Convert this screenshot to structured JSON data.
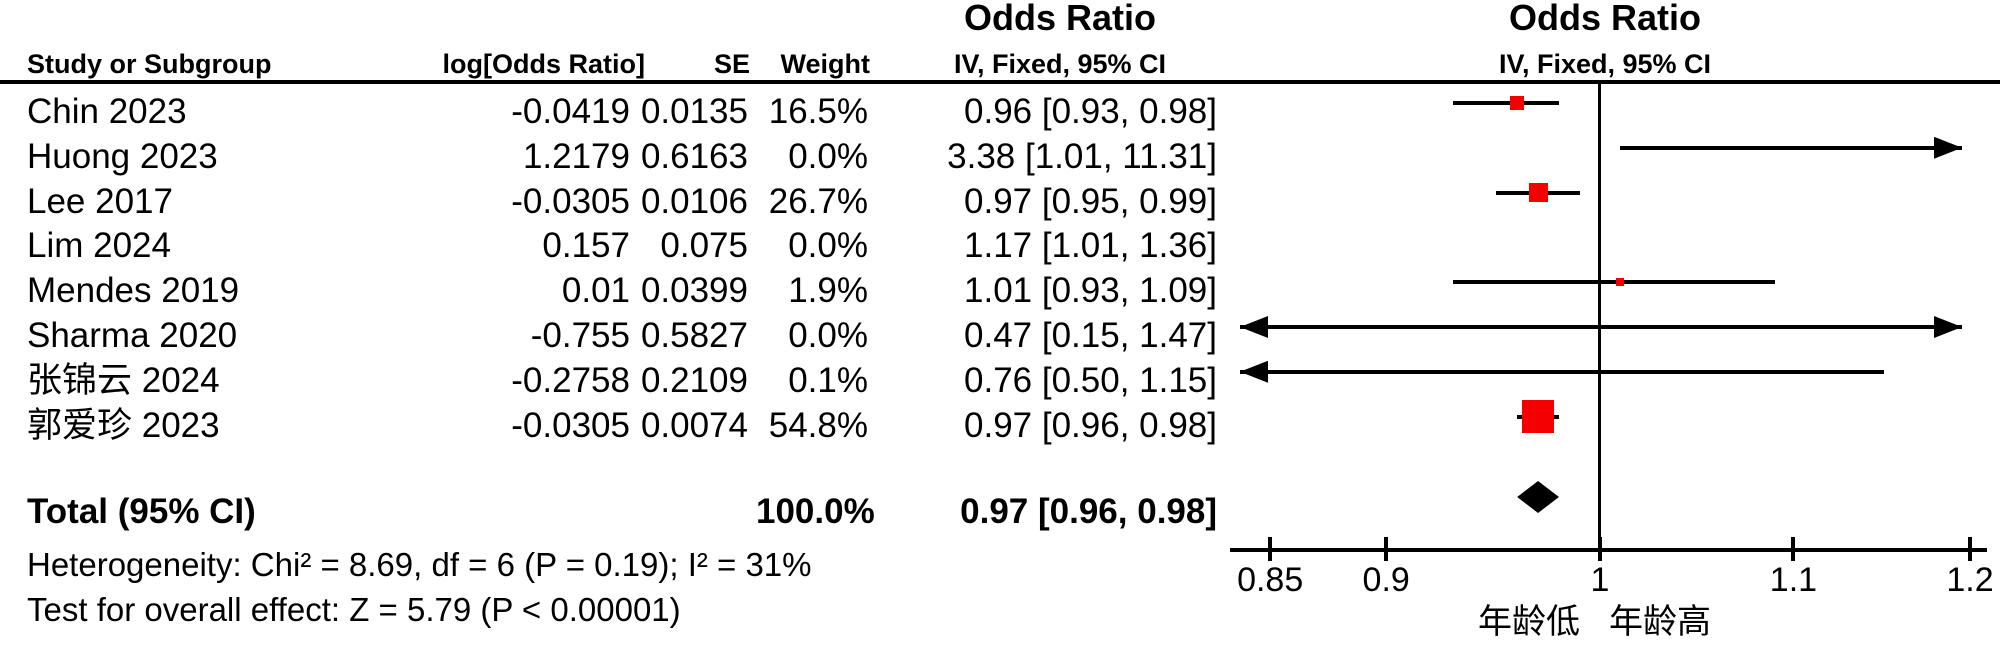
{
  "header": {
    "or_col_title": "Odds Ratio",
    "or_plot_title": "Odds Ratio",
    "study_col": "Study or Subgroup",
    "log_or_col": "log[Odds Ratio]",
    "se_col": "SE",
    "weight_col": "Weight",
    "ci_col": "IV, Fixed, 95% CI",
    "ci_plot_col": "IV, Fixed, 95% CI"
  },
  "colors": {
    "marker_square": "#f40000",
    "line": "#000000",
    "diamond": "#000000",
    "text": "#000000",
    "background": "#ffffff"
  },
  "chart_data": {
    "type": "forest",
    "effect_measure": "Odds Ratio",
    "model": "IV, Fixed, 95% CI",
    "x_scale": "log",
    "x_min": 0.85,
    "x_max": 1.2,
    "x_axis_ticks": [
      "0.85",
      "0.9",
      "1",
      "1.1",
      "1.2"
    ],
    "x_axis_tick_values": [
      0.85,
      0.9,
      1,
      1.1,
      1.2
    ],
    "x_label_left": "年龄低",
    "x_label_right": "年龄高",
    "null_line": 1,
    "studies": [
      {
        "name": "Chin 2023",
        "log_or": "-0.0419",
        "se": "0.0135",
        "weight": "16.5%",
        "ci_text": "0.96 [0.93, 0.98]",
        "or": 0.96,
        "ci_low": 0.93,
        "ci_high": 0.98,
        "weight_pct": 16.5,
        "plotted": true
      },
      {
        "name": "Huong 2023",
        "log_or": "1.2179",
        "se": "0.6163",
        "weight": "0.0%",
        "ci_text": "3.38 [1.01, 11.31]",
        "or": 3.38,
        "ci_low": 1.01,
        "ci_high": 11.31,
        "weight_pct": 0.0,
        "plotted": true
      },
      {
        "name": "Lee 2017",
        "log_or": "-0.0305",
        "se": "0.0106",
        "weight": "26.7%",
        "ci_text": "0.97 [0.95, 0.99]",
        "or": 0.97,
        "ci_low": 0.95,
        "ci_high": 0.99,
        "weight_pct": 26.7,
        "plotted": true
      },
      {
        "name": "Lim 2024",
        "log_or": "0.157",
        "se": "0.075",
        "weight": "0.0%",
        "ci_text": "1.17 [1.01, 1.36]",
        "or": 1.17,
        "ci_low": 1.01,
        "ci_high": 1.36,
        "weight_pct": 0.0,
        "plotted": false
      },
      {
        "name": "Mendes 2019",
        "log_or": "0.01",
        "se": "0.0399",
        "weight": "1.9%",
        "ci_text": "1.01 [0.93, 1.09]",
        "or": 1.01,
        "ci_low": 0.93,
        "ci_high": 1.09,
        "weight_pct": 1.9,
        "plotted": true
      },
      {
        "name": "Sharma 2020",
        "log_or": "-0.755",
        "se": "0.5827",
        "weight": "0.0%",
        "ci_text": "0.47 [0.15, 1.47]",
        "or": 0.47,
        "ci_low": 0.15,
        "ci_high": 1.47,
        "weight_pct": 0.0,
        "plotted": true
      },
      {
        "name": "张锦云 2024",
        "log_or": "-0.2758",
        "se": "0.2109",
        "weight": "0.1%",
        "ci_text": "0.76 [0.50, 1.15]",
        "or": 0.76,
        "ci_low": 0.5,
        "ci_high": 1.15,
        "weight_pct": 0.1,
        "plotted": true
      },
      {
        "name": "郭爱珍 2023",
        "log_or": "-0.0305",
        "se": "0.0074",
        "weight": "54.8%",
        "ci_text": "0.97 [0.96, 0.98]",
        "or": 0.97,
        "ci_low": 0.96,
        "ci_high": 0.98,
        "weight_pct": 54.8,
        "plotted": true
      }
    ],
    "total": {
      "label": "Total (95% CI)",
      "weight": "100.0%",
      "ci_text": "0.97 [0.96, 0.98]",
      "or": 0.97,
      "ci_low": 0.96,
      "ci_high": 0.98
    },
    "footnotes": {
      "heterogeneity": "Heterogeneity: Chi² = 8.69, df = 6 (P = 0.19); I² = 31%",
      "overall_effect": "Test for overall effect: Z = 5.79 (P < 0.00001)"
    }
  }
}
